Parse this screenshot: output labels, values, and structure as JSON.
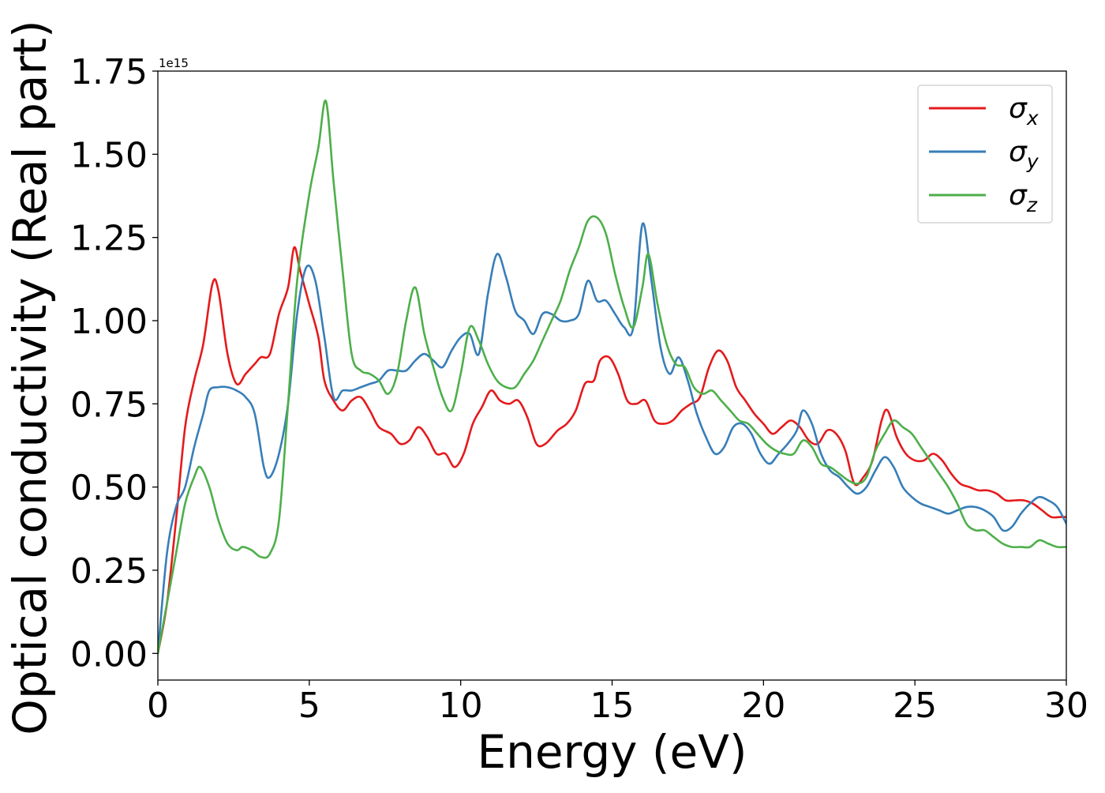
{
  "chart_data": {
    "type": "line",
    "title": "",
    "xlabel": "Energy (eV)",
    "ylabel": "Optical conductivity (Real part)",
    "offset_text": "1e15",
    "xlim": [
      0,
      30
    ],
    "ylim": [
      -0.08,
      1.75
    ],
    "y_scale_factor": 1000000000000000.0,
    "x_ticks": [
      0,
      5,
      10,
      15,
      20,
      25,
      30
    ],
    "x_tick_labels": [
      "0",
      "5",
      "10",
      "15",
      "20",
      "25",
      "30"
    ],
    "y_ticks": [
      0.0,
      0.25,
      0.5,
      0.75,
      1.0,
      1.25,
      1.5,
      1.75
    ],
    "y_tick_labels": [
      "0.00",
      "0.25",
      "0.50",
      "0.75",
      "1.00",
      "1.25",
      "1.50",
      "1.75"
    ],
    "grid": false,
    "legend_position": "top-right",
    "series": [
      {
        "name": "σx",
        "legend_base": "σ",
        "legend_sub": "x",
        "color": "#e41a1c",
        "points": [
          [
            0,
            0
          ],
          [
            0.3,
            0.15
          ],
          [
            0.6,
            0.4
          ],
          [
            0.9,
            0.68
          ],
          [
            1.2,
            0.82
          ],
          [
            1.5,
            0.93
          ],
          [
            1.8,
            1.11
          ],
          [
            2.0,
            1.09
          ],
          [
            2.3,
            0.9
          ],
          [
            2.6,
            0.81
          ],
          [
            2.9,
            0.84
          ],
          [
            3.2,
            0.87
          ],
          [
            3.4,
            0.89
          ],
          [
            3.7,
            0.9
          ],
          [
            4.0,
            1.02
          ],
          [
            4.3,
            1.1
          ],
          [
            4.5,
            1.22
          ],
          [
            4.7,
            1.15
          ],
          [
            5.0,
            1.05
          ],
          [
            5.3,
            0.95
          ],
          [
            5.5,
            0.82
          ],
          [
            5.8,
            0.76
          ],
          [
            6.1,
            0.73
          ],
          [
            6.4,
            0.76
          ],
          [
            6.7,
            0.77
          ],
          [
            7.0,
            0.73
          ],
          [
            7.3,
            0.68
          ],
          [
            7.7,
            0.66
          ],
          [
            8.0,
            0.63
          ],
          [
            8.3,
            0.64
          ],
          [
            8.6,
            0.68
          ],
          [
            8.9,
            0.65
          ],
          [
            9.2,
            0.6
          ],
          [
            9.5,
            0.6
          ],
          [
            9.8,
            0.56
          ],
          [
            10.1,
            0.6
          ],
          [
            10.4,
            0.69
          ],
          [
            10.7,
            0.74
          ],
          [
            11.0,
            0.79
          ],
          [
            11.3,
            0.76
          ],
          [
            11.6,
            0.75
          ],
          [
            11.9,
            0.76
          ],
          [
            12.2,
            0.71
          ],
          [
            12.5,
            0.63
          ],
          [
            12.8,
            0.63
          ],
          [
            13.2,
            0.67
          ],
          [
            13.5,
            0.69
          ],
          [
            13.8,
            0.73
          ],
          [
            14.1,
            0.81
          ],
          [
            14.4,
            0.82
          ],
          [
            14.6,
            0.88
          ],
          [
            14.9,
            0.89
          ],
          [
            15.2,
            0.84
          ],
          [
            15.5,
            0.76
          ],
          [
            15.8,
            0.75
          ],
          [
            16.1,
            0.76
          ],
          [
            16.4,
            0.7
          ],
          [
            16.7,
            0.69
          ],
          [
            17.0,
            0.7
          ],
          [
            17.3,
            0.73
          ],
          [
            17.6,
            0.75
          ],
          [
            17.9,
            0.77
          ],
          [
            18.2,
            0.86
          ],
          [
            18.5,
            0.91
          ],
          [
            18.8,
            0.88
          ],
          [
            19.1,
            0.8
          ],
          [
            19.4,
            0.76
          ],
          [
            19.7,
            0.72
          ],
          [
            20.0,
            0.69
          ],
          [
            20.3,
            0.66
          ],
          [
            20.6,
            0.68
          ],
          [
            20.9,
            0.7
          ],
          [
            21.2,
            0.68
          ],
          [
            21.5,
            0.64
          ],
          [
            21.8,
            0.63
          ],
          [
            22.1,
            0.67
          ],
          [
            22.4,
            0.66
          ],
          [
            22.7,
            0.61
          ],
          [
            23.0,
            0.51
          ],
          [
            23.3,
            0.53
          ],
          [
            23.6,
            0.58
          ],
          [
            23.9,
            0.7
          ],
          [
            24.1,
            0.73
          ],
          [
            24.4,
            0.65
          ],
          [
            24.7,
            0.6
          ],
          [
            25.0,
            0.58
          ],
          [
            25.3,
            0.58
          ],
          [
            25.6,
            0.6
          ],
          [
            25.9,
            0.58
          ],
          [
            26.2,
            0.54
          ],
          [
            26.5,
            0.51
          ],
          [
            26.8,
            0.5
          ],
          [
            27.1,
            0.49
          ],
          [
            27.4,
            0.49
          ],
          [
            27.7,
            0.48
          ],
          [
            28.0,
            0.46
          ],
          [
            28.3,
            0.46
          ],
          [
            28.6,
            0.46
          ],
          [
            28.9,
            0.45
          ],
          [
            29.2,
            0.43
          ],
          [
            29.5,
            0.41
          ],
          [
            29.8,
            0.41
          ],
          [
            30.0,
            0.41
          ]
        ]
      },
      {
        "name": "σy",
        "legend_base": "σ",
        "legend_sub": "y",
        "color": "#377eb8",
        "points": [
          [
            0,
            0
          ],
          [
            0.3,
            0.3
          ],
          [
            0.6,
            0.44
          ],
          [
            0.9,
            0.5
          ],
          [
            1.2,
            0.62
          ],
          [
            1.5,
            0.72
          ],
          [
            1.7,
            0.79
          ],
          [
            2.0,
            0.8
          ],
          [
            2.3,
            0.8
          ],
          [
            2.6,
            0.79
          ],
          [
            2.9,
            0.77
          ],
          [
            3.2,
            0.72
          ],
          [
            3.5,
            0.56
          ],
          [
            3.7,
            0.53
          ],
          [
            4.0,
            0.6
          ],
          [
            4.3,
            0.75
          ],
          [
            4.6,
            1.02
          ],
          [
            4.9,
            1.16
          ],
          [
            5.2,
            1.12
          ],
          [
            5.5,
            0.95
          ],
          [
            5.8,
            0.77
          ],
          [
            6.1,
            0.79
          ],
          [
            6.4,
            0.79
          ],
          [
            6.7,
            0.8
          ],
          [
            7.0,
            0.81
          ],
          [
            7.3,
            0.82
          ],
          [
            7.6,
            0.85
          ],
          [
            7.9,
            0.85
          ],
          [
            8.2,
            0.85
          ],
          [
            8.5,
            0.88
          ],
          [
            8.8,
            0.9
          ],
          [
            9.1,
            0.88
          ],
          [
            9.4,
            0.86
          ],
          [
            9.7,
            0.91
          ],
          [
            10.0,
            0.95
          ],
          [
            10.3,
            0.96
          ],
          [
            10.6,
            0.9
          ],
          [
            10.9,
            1.08
          ],
          [
            11.2,
            1.2
          ],
          [
            11.5,
            1.13
          ],
          [
            11.8,
            1.03
          ],
          [
            12.1,
            1.0
          ],
          [
            12.4,
            0.96
          ],
          [
            12.7,
            1.02
          ],
          [
            13.0,
            1.02
          ],
          [
            13.3,
            1.0
          ],
          [
            13.6,
            1.0
          ],
          [
            13.9,
            1.02
          ],
          [
            14.2,
            1.12
          ],
          [
            14.5,
            1.06
          ],
          [
            14.8,
            1.06
          ],
          [
            15.1,
            1.02
          ],
          [
            15.4,
            0.98
          ],
          [
            15.7,
            0.98
          ],
          [
            16.0,
            1.29
          ],
          [
            16.3,
            1.12
          ],
          [
            16.6,
            0.92
          ],
          [
            16.9,
            0.84
          ],
          [
            17.2,
            0.89
          ],
          [
            17.5,
            0.82
          ],
          [
            17.8,
            0.72
          ],
          [
            18.1,
            0.65
          ],
          [
            18.4,
            0.6
          ],
          [
            18.7,
            0.62
          ],
          [
            19.0,
            0.68
          ],
          [
            19.3,
            0.69
          ],
          [
            19.6,
            0.66
          ],
          [
            19.9,
            0.6
          ],
          [
            20.2,
            0.57
          ],
          [
            20.5,
            0.6
          ],
          [
            20.8,
            0.63
          ],
          [
            21.1,
            0.67
          ],
          [
            21.3,
            0.73
          ],
          [
            21.6,
            0.69
          ],
          [
            21.9,
            0.6
          ],
          [
            22.2,
            0.55
          ],
          [
            22.5,
            0.53
          ],
          [
            22.8,
            0.5
          ],
          [
            23.1,
            0.48
          ],
          [
            23.4,
            0.5
          ],
          [
            23.7,
            0.55
          ],
          [
            24.0,
            0.59
          ],
          [
            24.3,
            0.56
          ],
          [
            24.6,
            0.5
          ],
          [
            24.9,
            0.47
          ],
          [
            25.2,
            0.45
          ],
          [
            25.5,
            0.44
          ],
          [
            25.8,
            0.43
          ],
          [
            26.1,
            0.42
          ],
          [
            26.4,
            0.43
          ],
          [
            26.7,
            0.44
          ],
          [
            27.0,
            0.44
          ],
          [
            27.3,
            0.43
          ],
          [
            27.6,
            0.41
          ],
          [
            27.9,
            0.37
          ],
          [
            28.2,
            0.38
          ],
          [
            28.5,
            0.42
          ],
          [
            28.8,
            0.45
          ],
          [
            29.1,
            0.47
          ],
          [
            29.4,
            0.46
          ],
          [
            29.7,
            0.44
          ],
          [
            30.0,
            0.39
          ]
        ]
      },
      {
        "name": "σz",
        "legend_base": "σ",
        "legend_sub": "z",
        "color": "#4daf4a",
        "points": [
          [
            0,
            0
          ],
          [
            0.3,
            0.15
          ],
          [
            0.6,
            0.3
          ],
          [
            0.9,
            0.45
          ],
          [
            1.2,
            0.53
          ],
          [
            1.4,
            0.56
          ],
          [
            1.7,
            0.5
          ],
          [
            2.0,
            0.4
          ],
          [
            2.3,
            0.33
          ],
          [
            2.6,
            0.31
          ],
          [
            2.8,
            0.32
          ],
          [
            3.1,
            0.31
          ],
          [
            3.4,
            0.29
          ],
          [
            3.7,
            0.3
          ],
          [
            4.0,
            0.4
          ],
          [
            4.3,
            0.75
          ],
          [
            4.6,
            1.12
          ],
          [
            5.0,
            1.38
          ],
          [
            5.3,
            1.52
          ],
          [
            5.55,
            1.66
          ],
          [
            5.8,
            1.42
          ],
          [
            6.1,
            1.15
          ],
          [
            6.4,
            0.9
          ],
          [
            6.7,
            0.85
          ],
          [
            7.0,
            0.84
          ],
          [
            7.3,
            0.82
          ],
          [
            7.6,
            0.78
          ],
          [
            7.9,
            0.84
          ],
          [
            8.2,
            1.0
          ],
          [
            8.5,
            1.1
          ],
          [
            8.8,
            0.96
          ],
          [
            9.1,
            0.86
          ],
          [
            9.4,
            0.77
          ],
          [
            9.7,
            0.73
          ],
          [
            10.0,
            0.84
          ],
          [
            10.3,
            0.98
          ],
          [
            10.6,
            0.94
          ],
          [
            10.9,
            0.87
          ],
          [
            11.2,
            0.82
          ],
          [
            11.5,
            0.8
          ],
          [
            11.8,
            0.8
          ],
          [
            12.1,
            0.84
          ],
          [
            12.4,
            0.88
          ],
          [
            12.7,
            0.94
          ],
          [
            13.0,
            1.0
          ],
          [
            13.3,
            1.06
          ],
          [
            13.6,
            1.15
          ],
          [
            13.9,
            1.22
          ],
          [
            14.2,
            1.3
          ],
          [
            14.5,
            1.31
          ],
          [
            14.8,
            1.26
          ],
          [
            15.1,
            1.14
          ],
          [
            15.4,
            1.04
          ],
          [
            15.7,
            0.98
          ],
          [
            16.0,
            1.1
          ],
          [
            16.2,
            1.2
          ],
          [
            16.5,
            1.05
          ],
          [
            16.8,
            0.93
          ],
          [
            17.1,
            0.87
          ],
          [
            17.4,
            0.86
          ],
          [
            17.7,
            0.8
          ],
          [
            18.0,
            0.78
          ],
          [
            18.3,
            0.79
          ],
          [
            18.6,
            0.76
          ],
          [
            18.9,
            0.73
          ],
          [
            19.2,
            0.7
          ],
          [
            19.5,
            0.69
          ],
          [
            19.8,
            0.66
          ],
          [
            20.1,
            0.63
          ],
          [
            20.4,
            0.61
          ],
          [
            20.7,
            0.6
          ],
          [
            21.0,
            0.6
          ],
          [
            21.3,
            0.64
          ],
          [
            21.6,
            0.62
          ],
          [
            21.9,
            0.57
          ],
          [
            22.2,
            0.56
          ],
          [
            22.5,
            0.54
          ],
          [
            22.8,
            0.52
          ],
          [
            23.1,
            0.51
          ],
          [
            23.4,
            0.53
          ],
          [
            23.7,
            0.61
          ],
          [
            24.0,
            0.66
          ],
          [
            24.3,
            0.7
          ],
          [
            24.6,
            0.68
          ],
          [
            24.9,
            0.66
          ],
          [
            25.2,
            0.62
          ],
          [
            25.5,
            0.58
          ],
          [
            25.8,
            0.54
          ],
          [
            26.1,
            0.5
          ],
          [
            26.4,
            0.45
          ],
          [
            26.7,
            0.39
          ],
          [
            27.0,
            0.37
          ],
          [
            27.3,
            0.37
          ],
          [
            27.6,
            0.35
          ],
          [
            27.9,
            0.33
          ],
          [
            28.2,
            0.32
          ],
          [
            28.5,
            0.32
          ],
          [
            28.8,
            0.32
          ],
          [
            29.1,
            0.34
          ],
          [
            29.4,
            0.33
          ],
          [
            29.7,
            0.32
          ],
          [
            30.0,
            0.32
          ]
        ]
      }
    ]
  }
}
